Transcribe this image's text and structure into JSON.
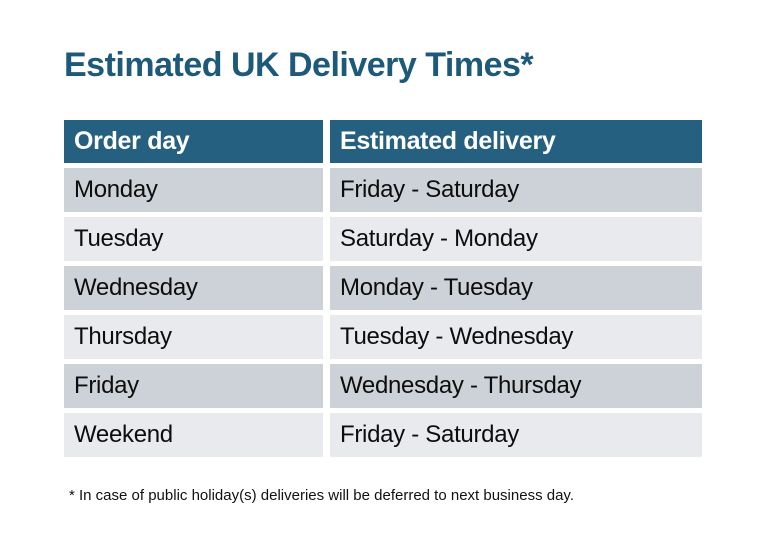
{
  "title": "Estimated UK Delivery Times*",
  "colors": {
    "title_text": "#1d5a7a",
    "header_bg": "#266080",
    "header_text": "#ffffff",
    "row_dark_bg": "#cdd2d8",
    "row_light_bg": "#e8eaed",
    "body_text": "#0d0d0d",
    "page_bg": "#ffffff"
  },
  "table": {
    "headers": [
      "Order day",
      "Estimated delivery"
    ],
    "rows": [
      {
        "order_day": "Monday",
        "estimated_delivery": "Friday - Saturday"
      },
      {
        "order_day": "Tuesday",
        "estimated_delivery": "Saturday - Monday"
      },
      {
        "order_day": "Wednesday",
        "estimated_delivery": "Monday - Tuesday"
      },
      {
        "order_day": "Thursday",
        "estimated_delivery": "Tuesday - Wednesday"
      },
      {
        "order_day": "Friday",
        "estimated_delivery": "Wednesday - Thursday"
      },
      {
        "order_day": "Weekend",
        "estimated_delivery": "Friday - Saturday"
      }
    ]
  },
  "footnote": "* In case of public holiday(s) deliveries will be deferred to next business day."
}
